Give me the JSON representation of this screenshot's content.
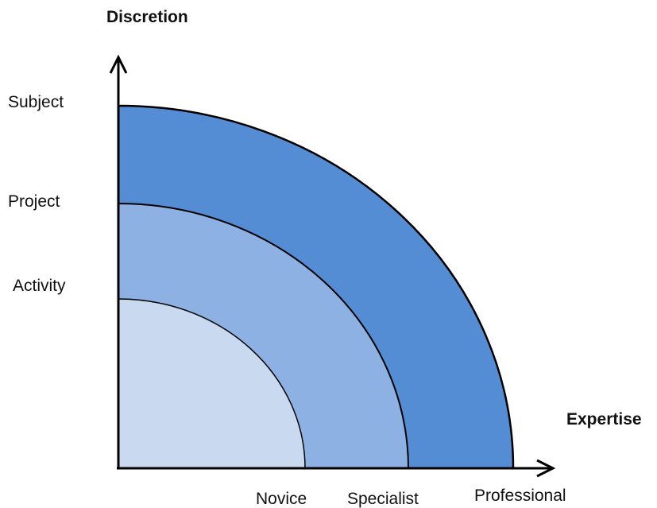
{
  "title": "",
  "axes": {
    "y_label": "Discretion",
    "x_label": "Expertise"
  },
  "y_levels": [
    "Activity",
    "Project",
    "Subject"
  ],
  "x_levels": [
    "Novice",
    "Specialist",
    "Professional"
  ],
  "bands": [
    {
      "name": "Activity–Novice",
      "color": "#c8d9f0"
    },
    {
      "name": "Project–Specialist",
      "color": "#8eb1e3"
    },
    {
      "name": "Subject–Professional",
      "color": "#548dd4"
    }
  ],
  "stroke_color": "#000000"
}
